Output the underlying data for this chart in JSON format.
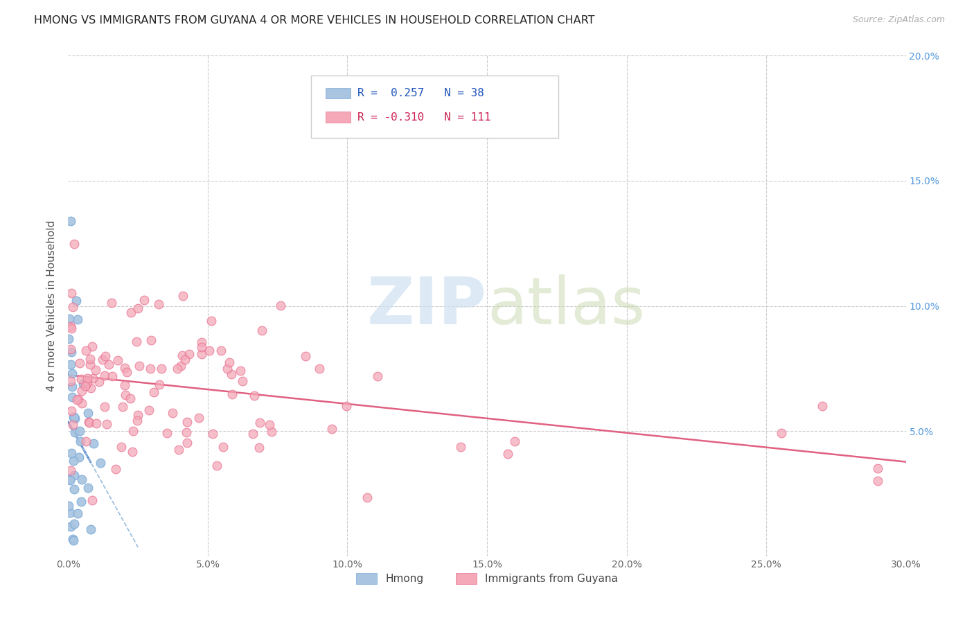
{
  "title": "HMONG VS IMMIGRANTS FROM GUYANA 4 OR MORE VEHICLES IN HOUSEHOLD CORRELATION CHART",
  "source": "Source: ZipAtlas.com",
  "ylabel": "4 or more Vehicles in Household",
  "xlim": [
    0.0,
    0.3
  ],
  "ylim": [
    0.0,
    0.2
  ],
  "xticks": [
    0.0,
    0.05,
    0.1,
    0.15,
    0.2,
    0.25,
    0.3
  ],
  "yticks": [
    0.0,
    0.05,
    0.1,
    0.15,
    0.2
  ],
  "hmong_color": "#a8c4e0",
  "hmong_edge_color": "#7aaad8",
  "guyana_color": "#f4a8b8",
  "guyana_edge_color": "#e87090",
  "hmong_line_color": "#5588cc",
  "hmong_dash_color": "#99bbdd",
  "guyana_line_color": "#e06080",
  "right_tick_color": "#5599dd",
  "hmong_R": 0.257,
  "hmong_N": 38,
  "guyana_R": -0.31,
  "guyana_N": 111,
  "legend_label1": "Hmong",
  "legend_label2": "Immigrants from Guyana",
  "background_color": "#ffffff",
  "grid_color": "#cccccc",
  "title_color": "#222222",
  "source_color": "#aaaaaa",
  "tick_color": "#666666"
}
